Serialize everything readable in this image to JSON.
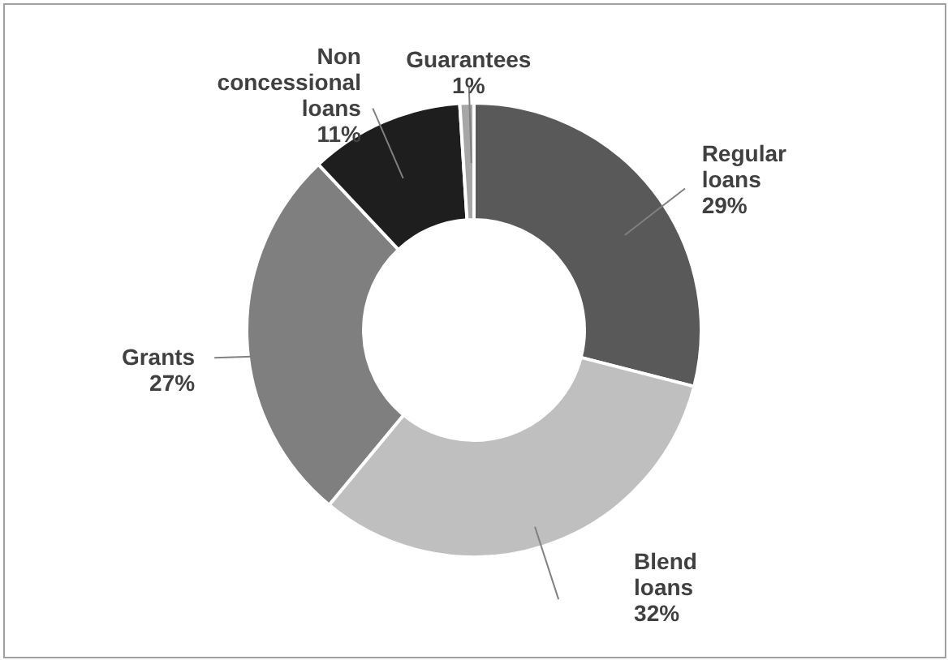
{
  "chart_data": {
    "type": "donut",
    "categories": [
      "Regular loans",
      "Blend loans",
      "Grants",
      "Non concessional loans",
      "Guarantees"
    ],
    "values": [
      29,
      32,
      27,
      11,
      1
    ],
    "value_labels": [
      "29%",
      "32%",
      "27%",
      "11%",
      "1%"
    ],
    "colors": [
      "#595959",
      "#bfbfbf",
      "#7f7f7f",
      "#1e1e1e",
      "#a6a6a6"
    ]
  }
}
